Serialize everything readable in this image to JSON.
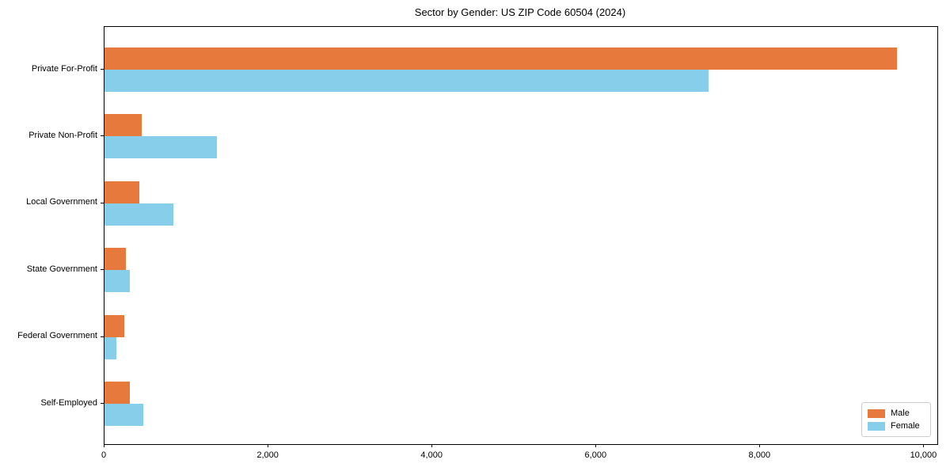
{
  "chart_data": {
    "type": "bar",
    "orientation": "horizontal",
    "title": "Sector by Gender: US ZIP Code 60504 (2024)",
    "categories": [
      "Private For-Profit",
      "Private Non-Profit",
      "Local Government",
      "State Government",
      "Federal Government",
      "Self-Employed"
    ],
    "series": [
      {
        "name": "Male",
        "color": "#E8793D",
        "values": [
          9670,
          455,
          425,
          260,
          240,
          310
        ]
      },
      {
        "name": "Female",
        "color": "#87CEEB",
        "values": [
          7370,
          1370,
          840,
          310,
          145,
          470
        ]
      }
    ],
    "xlabel": "",
    "ylabel": "",
    "xlim": [
      0,
      10160
    ],
    "xticks": [
      0,
      2000,
      4000,
      6000,
      8000,
      10000
    ],
    "xtick_labels": [
      "0",
      "2,000",
      "4,000",
      "6,000",
      "8,000",
      "10,000"
    ],
    "grid": false,
    "legend": {
      "position": "lower right",
      "labels": [
        "Male",
        "Female"
      ]
    }
  }
}
